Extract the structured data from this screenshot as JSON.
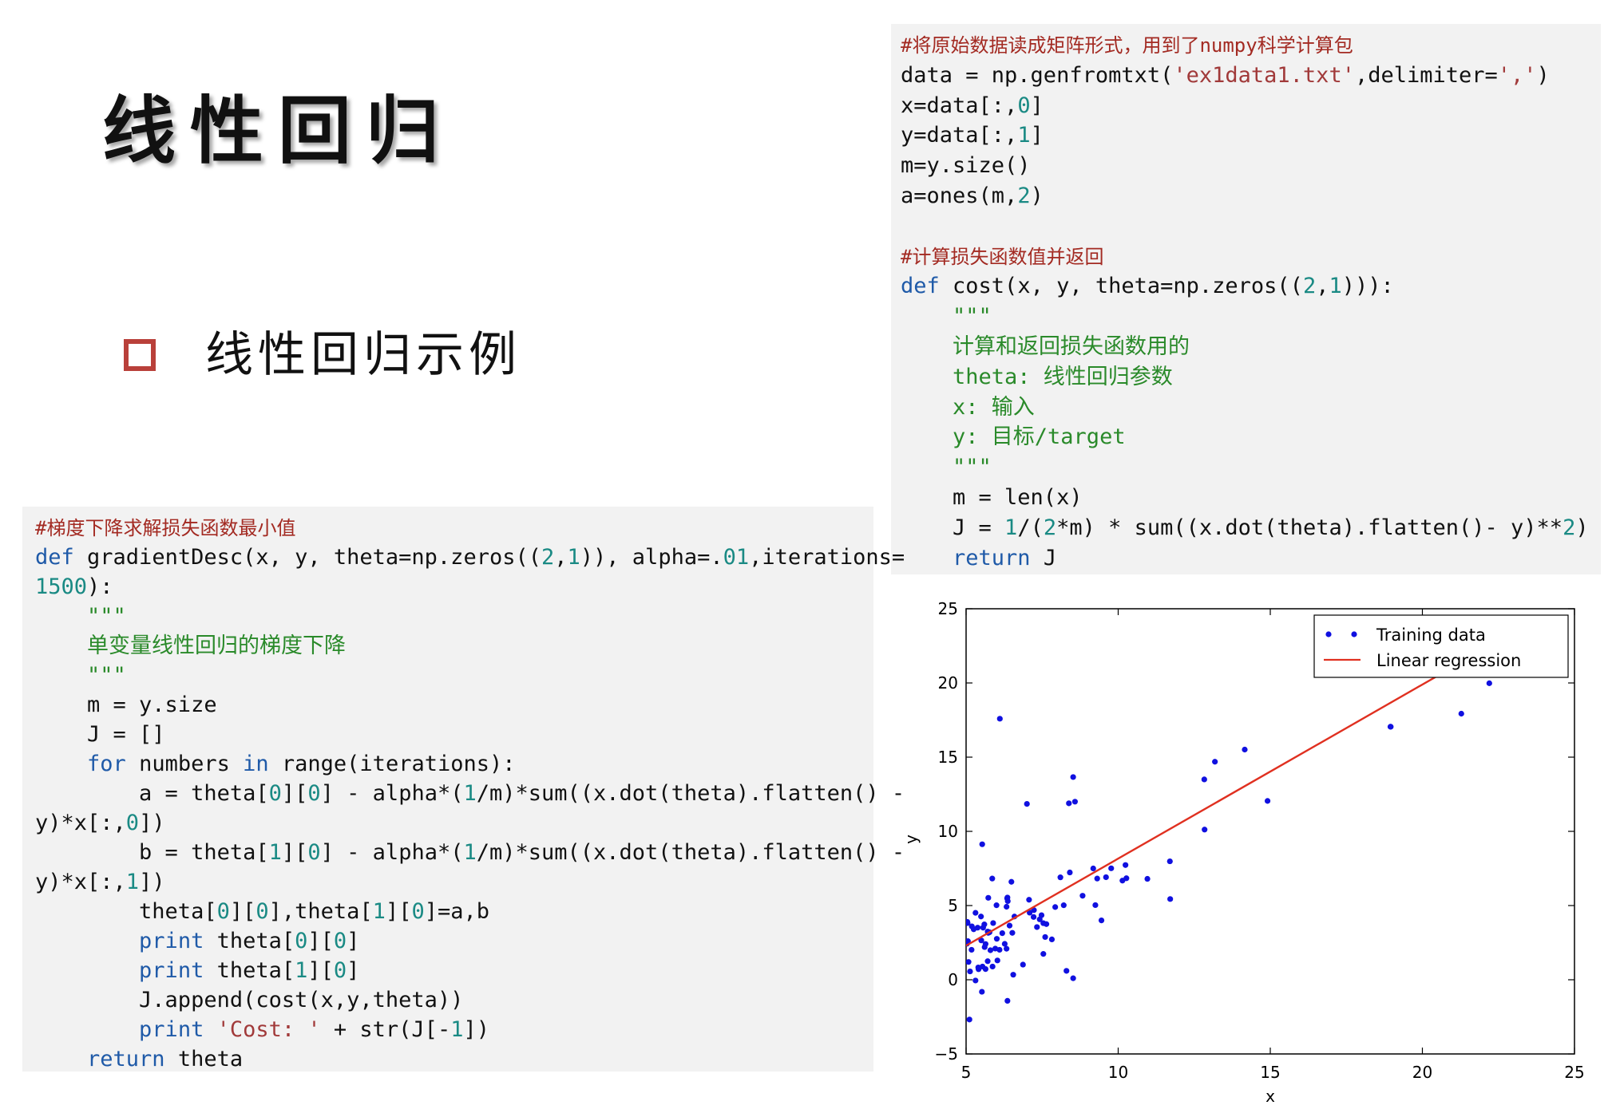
{
  "slide": {
    "title": "线性回归",
    "bullet": "线性回归示例"
  },
  "code_cost": {
    "lines": [
      "#将原始数据读成矩阵形式，用到了numpy科学计算包",
      "data = np.genfromtxt('ex1data1.txt',delimiter=',')",
      "x=data[:,0]",
      "y=data[:,1]",
      "m=y.size()",
      "a=ones(m,2)",
      "",
      "#计算损失函数值并返回",
      "def cost(x, y, theta=np.zeros((2,1))):",
      "    \"\"\"",
      "    计算和返回损失函数用的",
      "    theta: 线性回归参数",
      "    x: 输入",
      "    y: 目标/target",
      "    \"\"\"",
      "    m = len(x)",
      "    J = 1/(2*m) * sum((x.dot(theta).flatten()- y)**2)",
      "    return J"
    ]
  },
  "code_gd": {
    "lines": [
      "#梯度下降求解损失函数最小值",
      "def gradientDesc(x, y, theta=np.zeros((2,1)), alpha=.01,iterations=",
      "1500):",
      "    \"\"\"",
      "    单变量线性回归的梯度下降",
      "    \"\"\"",
      "    m = y.size",
      "    J = []",
      "    for numbers in range(iterations):",
      "        a = theta[0][0] - alpha*(1/m)*sum((x.dot(theta).flatten() -",
      "y)*x[:,0])",
      "        b = theta[1][0] - alpha*(1/m)*sum((x.dot(theta).flatten() -",
      "y)*x[:,1])",
      "        theta[0][0],theta[1][0]=a,b",
      "        print theta[0][0]",
      "        print theta[1][0]",
      "        J.append(cost(x,y,theta))",
      "        print 'Cost: ' + str(J[-1])",
      "    return theta"
    ]
  },
  "chart_data": {
    "type": "scatter",
    "xlabel": "x",
    "ylabel": "y",
    "xlim": [
      5,
      25
    ],
    "ylim": [
      -5,
      25
    ],
    "xticks": [
      "5",
      "10",
      "15",
      "20",
      "25"
    ],
    "yticks": [
      "−5",
      "0",
      "5",
      "10",
      "15",
      "20",
      "25"
    ],
    "legend": {
      "placement": "top-right",
      "entries": [
        "Training data",
        "Linear regression"
      ]
    },
    "colors": {
      "points": "#1010e0",
      "line": "#e03020"
    },
    "series": [
      {
        "name": "Training data",
        "x": [
          6.11,
          5.53,
          8.52,
          7.0,
          5.86,
          8.38,
          7.48,
          8.58,
          6.49,
          5.05,
          5.71,
          14.16,
          5.73,
          8.41,
          5.64,
          5.38,
          6.37,
          5.13,
          6.43,
          7.07,
          6.19,
          20.27,
          5.49,
          6.33,
          5.56,
          18.95,
          12.83,
          10.96,
          13.18,
          22.2,
          5.25,
          6.59,
          9.25,
          5.89,
          8.21,
          7.93,
          8.1,
          5.61,
          12.84,
          6.35,
          5.41,
          6.87,
          11.71,
          5.77,
          7.82,
          7.09,
          5.08,
          5.8,
          11.7,
          5.54,
          7.54,
          5.31,
          7.42,
          7.6,
          6.03,
          6.33,
          6.36,
          6.27,
          5.64,
          9.31,
          9.45,
          8.83,
          5.18,
          21.28,
          14.91,
          18.96,
          7.22,
          8.3,
          10.24,
          5.5,
          20.34,
          10.14,
          7.33,
          6.01,
          7.23,
          5.03,
          6.55,
          7.54,
          5.04,
          10.27,
          5.11,
          5.73,
          5.19,
          6.36,
          9.77,
          6.52,
          8.52,
          9.18,
          6.0,
          5.52,
          5.06,
          5.71,
          7.64,
          5.87,
          5.31,
          5.4,
          5.6,
          5.96,
          6.1,
          9.6
        ],
        "y": [
          17.59,
          9.13,
          13.66,
          11.85,
          6.82,
          11.89,
          4.35,
          12.0,
          6.6,
          3.82,
          3.25,
          15.51,
          3.16,
          7.23,
          0.72,
          3.51,
          5.3,
          0.56,
          3.65,
          5.39,
          3.14,
          21.77,
          4.26,
          4.92,
          3.51,
          17.05,
          13.5,
          6.8,
          14.69,
          19.98,
          3.4,
          4.26,
          5.03,
          3.82,
          5.02,
          4.9,
          6.9,
          2.2,
          10.12,
          5.49,
          0.71,
          1.02,
          5.44,
          3.2,
          2.72,
          4.52,
          1.2,
          1.99,
          7.98,
          0.89,
          1.74,
          4.51,
          4.07,
          2.88,
          1.3,
          2.09,
          -1.42,
          2.42,
          2.41,
          6.82,
          4.0,
          5.66,
          2.02,
          17.93,
          12.05,
          17.05,
          4.23,
          0.6,
          7.73,
          2.65,
          20.99,
          6.68,
          3.55,
          2.76,
          4.69,
          2.43,
          0.34,
          3.81,
          3.9,
          6.84,
          -2.68,
          5.52,
          3.6,
          5.54,
          7.51,
          3.16,
          0.1,
          7.5,
          5.02,
          -0.81,
          2.6,
          1.25,
          3.75,
          0.89,
          -0.05,
          0.83,
          3.73,
          2.1,
          2.02,
          6.91
        ]
      },
      {
        "name": "Linear regression",
        "x": [
          5.0,
          21.2
        ],
        "y": [
          2.3,
          21.3
        ]
      }
    ]
  }
}
